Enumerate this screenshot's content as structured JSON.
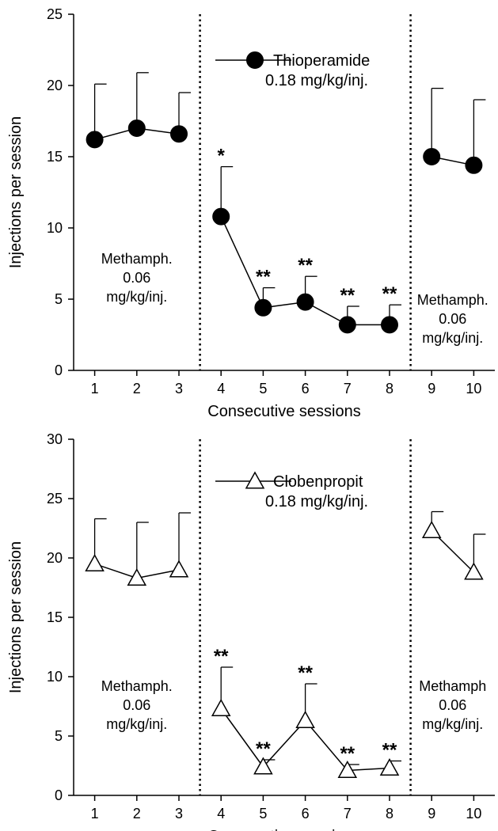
{
  "chart_data": [
    {
      "type": "line",
      "xlabel": "Consecutive sessions",
      "ylabel": "Injections per session",
      "ylim": [
        0,
        25
      ],
      "yticks": [
        0,
        5,
        10,
        15,
        20,
        25
      ],
      "xlim": [
        0.5,
        10.5
      ],
      "xticks": [
        1,
        2,
        3,
        4,
        5,
        6,
        7,
        8,
        9,
        10
      ],
      "grid": false,
      "marker": "circle-filled",
      "legend": {
        "label": "Thioperamide",
        "sublabel": "0.18 mg/kg/inj.",
        "position": "top-center"
      },
      "phases": [
        {
          "start": 1,
          "end": 3,
          "connected": true
        },
        {
          "start": 4,
          "end": 8,
          "connected": true
        },
        {
          "start": 9,
          "end": 10,
          "connected": true
        }
      ],
      "x": [
        1,
        2,
        3,
        4,
        5,
        6,
        7,
        8,
        9,
        10
      ],
      "y": [
        16.2,
        17.0,
        16.6,
        10.8,
        4.4,
        4.8,
        3.2,
        3.2,
        15.0,
        14.4
      ],
      "err": [
        3.9,
        3.9,
        2.9,
        3.5,
        1.4,
        1.8,
        1.3,
        1.4,
        4.8,
        4.6
      ],
      "significance": [
        "",
        "",
        "",
        "*",
        "**",
        "**",
        "**",
        "**",
        "",
        ""
      ],
      "dividers_x": [
        3.5,
        8.5
      ],
      "annotations": [
        {
          "lines": [
            "Methamph.",
            "0.06",
            "mg/kg/inj."
          ],
          "x": 2,
          "y": 7.5
        },
        {
          "lines": [
            "Methamph.",
            "0.06",
            "mg/kg/inj."
          ],
          "x": 9.5,
          "y": 4.6
        }
      ]
    },
    {
      "type": "line",
      "xlabel": "Consecutive sessions",
      "ylabel": "Injections per session",
      "ylim": [
        0,
        30
      ],
      "yticks": [
        0,
        5,
        10,
        15,
        20,
        25,
        30
      ],
      "xlim": [
        0.5,
        10.5
      ],
      "xticks": [
        1,
        2,
        3,
        4,
        5,
        6,
        7,
        8,
        9,
        10
      ],
      "grid": false,
      "marker": "triangle-open",
      "legend": {
        "label": "Clobenpropit",
        "sublabel": "0.18 mg/kg/inj.",
        "position": "top-center"
      },
      "phases": [
        {
          "start": 1,
          "end": 3,
          "connected": true
        },
        {
          "start": 4,
          "end": 8,
          "connected": true
        },
        {
          "start": 9,
          "end": 10,
          "connected": true
        }
      ],
      "x": [
        1,
        2,
        3,
        4,
        5,
        6,
        7,
        8,
        9,
        10
      ],
      "y": [
        19.5,
        18.3,
        19.0,
        7.3,
        2.4,
        6.3,
        2.1,
        2.3,
        22.3,
        18.8
      ],
      "err": [
        3.8,
        4.7,
        4.8,
        3.5,
        0.6,
        3.1,
        0.5,
        0.6,
        1.6,
        3.2
      ],
      "significance": [
        "",
        "",
        "",
        "**",
        "**",
        "**",
        "**",
        "**",
        "",
        ""
      ],
      "dividers_x": [
        3.5,
        8.5
      ],
      "annotations": [
        {
          "lines": [
            "Methamph.",
            "0.06",
            "mg/kg/inj."
          ],
          "x": 2,
          "y": 8.8
        },
        {
          "lines": [
            "Methamph",
            "0.06",
            "mg/kg/inj."
          ],
          "x": 9.5,
          "y": 8.8
        }
      ]
    }
  ]
}
